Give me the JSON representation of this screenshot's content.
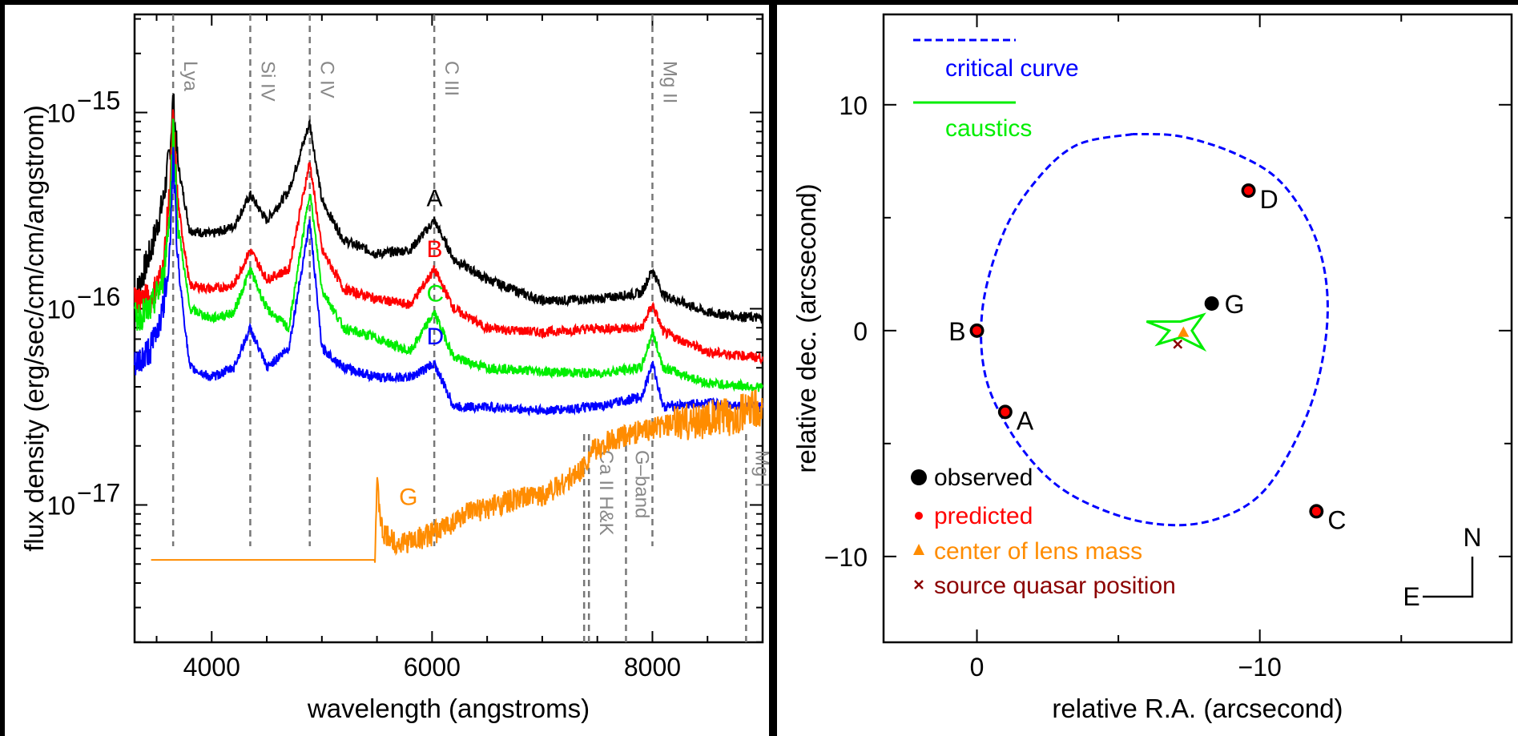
{
  "chart_data": [
    {
      "type": "line",
      "xlabel": "wavelength (angstroms)",
      "ylabel": "flux density (erg/sec/cm/cm/angstrom)",
      "xlim": [
        3300,
        9000
      ],
      "ylim_log10": [
        -17.7,
        -14.5
      ],
      "yscale": "log",
      "x_ticks": [
        4000,
        6000,
        8000
      ],
      "y_ticks": [
        {
          "exp": -15,
          "base": "10",
          "sup": "−15"
        },
        {
          "exp": -16,
          "base": "10",
          "sup": "−16"
        },
        {
          "exp": -17,
          "base": "10",
          "sup": "−17"
        }
      ],
      "emission_lines": [
        {
          "label": "Lya",
          "x": 3650
        },
        {
          "label": "Si IV",
          "x": 4350
        },
        {
          "label": "C IV",
          "x": 4890
        },
        {
          "label": "C III",
          "x": 6020
        },
        {
          "label": "Mg II",
          "x": 8000
        }
      ],
      "absorption_lines": [
        {
          "label": "Ca II H&K",
          "x": 7380
        },
        {
          "label": "G–band",
          "x": 7760
        },
        {
          "label": "Mg I",
          "x": 8850
        }
      ],
      "series": [
        {
          "name": "A",
          "color": "#000000",
          "points": [
            [
              3300,
              -15.95
            ],
            [
              3450,
              -15.7
            ],
            [
              3560,
              -15.45
            ],
            [
              3620,
              -15.2
            ],
            [
              3650,
              -14.93
            ],
            [
              3690,
              -15.25
            ],
            [
              3800,
              -15.6
            ],
            [
              4000,
              -15.62
            ],
            [
              4200,
              -15.58
            ],
            [
              4350,
              -15.42
            ],
            [
              4500,
              -15.55
            ],
            [
              4700,
              -15.4
            ],
            [
              4890,
              -15.05
            ],
            [
              5000,
              -15.45
            ],
            [
              5200,
              -15.65
            ],
            [
              5500,
              -15.72
            ],
            [
              5800,
              -15.7
            ],
            [
              6020,
              -15.55
            ],
            [
              6200,
              -15.75
            ],
            [
              6500,
              -15.85
            ],
            [
              7000,
              -15.96
            ],
            [
              7500,
              -15.95
            ],
            [
              7900,
              -15.92
            ],
            [
              8000,
              -15.8
            ],
            [
              8100,
              -15.93
            ],
            [
              8500,
              -16.02
            ],
            [
              9000,
              -16.05
            ]
          ]
        },
        {
          "name": "B",
          "color": "#ff0000",
          "points": [
            [
              3300,
              -15.95
            ],
            [
              3450,
              -15.95
            ],
            [
              3560,
              -15.8
            ],
            [
              3620,
              -15.4
            ],
            [
              3650,
              -15.02
            ],
            [
              3690,
              -15.45
            ],
            [
              3800,
              -15.88
            ],
            [
              4000,
              -15.9
            ],
            [
              4200,
              -15.88
            ],
            [
              4350,
              -15.7
            ],
            [
              4500,
              -15.85
            ],
            [
              4700,
              -15.8
            ],
            [
              4890,
              -15.25
            ],
            [
              5000,
              -15.7
            ],
            [
              5200,
              -15.9
            ],
            [
              5500,
              -15.95
            ],
            [
              5800,
              -15.98
            ],
            [
              6020,
              -15.8
            ],
            [
              6200,
              -16.0
            ],
            [
              6500,
              -16.1
            ],
            [
              7000,
              -16.12
            ],
            [
              7500,
              -16.1
            ],
            [
              7900,
              -16.1
            ],
            [
              8000,
              -15.98
            ],
            [
              8100,
              -16.12
            ],
            [
              8500,
              -16.22
            ],
            [
              9000,
              -16.25
            ]
          ]
        },
        {
          "name": "C",
          "color": "#00ee00",
          "points": [
            [
              3300,
              -16.05
            ],
            [
              3450,
              -16.0
            ],
            [
              3560,
              -15.85
            ],
            [
              3620,
              -15.5
            ],
            [
              3650,
              -15.05
            ],
            [
              3690,
              -15.55
            ],
            [
              3800,
              -16.0
            ],
            [
              4000,
              -16.05
            ],
            [
              4200,
              -16.02
            ],
            [
              4350,
              -15.8
            ],
            [
              4500,
              -16.0
            ],
            [
              4700,
              -16.1
            ],
            [
              4890,
              -15.4
            ],
            [
              5000,
              -15.9
            ],
            [
              5200,
              -16.1
            ],
            [
              5500,
              -16.15
            ],
            [
              5800,
              -16.22
            ],
            [
              6020,
              -16.02
            ],
            [
              6200,
              -16.25
            ],
            [
              6500,
              -16.3
            ],
            [
              7000,
              -16.32
            ],
            [
              7500,
              -16.33
            ],
            [
              7900,
              -16.3
            ],
            [
              8000,
              -16.12
            ],
            [
              8100,
              -16.3
            ],
            [
              8500,
              -16.38
            ],
            [
              9000,
              -16.4
            ]
          ]
        },
        {
          "name": "D",
          "color": "#0000ff",
          "points": [
            [
              3300,
              -16.3
            ],
            [
              3450,
              -16.2
            ],
            [
              3560,
              -16.0
            ],
            [
              3620,
              -15.7
            ],
            [
              3650,
              -15.2
            ],
            [
              3690,
              -15.75
            ],
            [
              3800,
              -16.3
            ],
            [
              4000,
              -16.35
            ],
            [
              4200,
              -16.3
            ],
            [
              4350,
              -16.1
            ],
            [
              4500,
              -16.3
            ],
            [
              4700,
              -16.2
            ],
            [
              4890,
              -15.55
            ],
            [
              5000,
              -16.2
            ],
            [
              5200,
              -16.3
            ],
            [
              5500,
              -16.35
            ],
            [
              5800,
              -16.35
            ],
            [
              6020,
              -16.28
            ],
            [
              6200,
              -16.5
            ],
            [
              6500,
              -16.5
            ],
            [
              7000,
              -16.52
            ],
            [
              7500,
              -16.5
            ],
            [
              7900,
              -16.45
            ],
            [
              8000,
              -16.28
            ],
            [
              8100,
              -16.5
            ],
            [
              8500,
              -16.48
            ],
            [
              9000,
              -16.5
            ]
          ]
        },
        {
          "name": "G",
          "color": "#ff8c00",
          "points": [
            [
              3450,
              -17.28
            ],
            [
              5480,
              -17.28
            ],
            [
              5500,
              -16.9
            ],
            [
              5550,
              -17.15
            ],
            [
              5700,
              -17.2
            ],
            [
              6000,
              -17.15
            ],
            [
              6300,
              -17.05
            ],
            [
              6700,
              -16.98
            ],
            [
              7000,
              -16.95
            ],
            [
              7300,
              -16.85
            ],
            [
              7380,
              -16.8
            ],
            [
              7450,
              -16.72
            ],
            [
              7500,
              -16.72
            ],
            [
              7600,
              -16.68
            ],
            [
              7900,
              -16.62
            ],
            [
              8300,
              -16.58
            ],
            [
              8700,
              -16.55
            ],
            [
              9000,
              -16.5
            ]
          ]
        }
      ]
    },
    {
      "type": "scatter",
      "xlabel": "relative R.A. (arcsecond)",
      "ylabel": "relative dec. (arcsecond)",
      "xlim": [
        3.3,
        -18.9
      ],
      "ylim": [
        -13.8,
        14.0
      ],
      "x_ticks": [
        {
          "value": 0,
          "label": "0"
        },
        {
          "value": -10,
          "label": "−10"
        }
      ],
      "y_ticks": [
        {
          "value": 10,
          "label": "10"
        },
        {
          "value": 0,
          "label": "0"
        },
        {
          "value": -10,
          "label": "−10"
        }
      ],
      "legend": {
        "lines": [
          {
            "label": "critical curve",
            "color": "#0000ff",
            "style": "dashed"
          },
          {
            "label": "caustics",
            "color": "#00ee00",
            "style": "solid"
          }
        ],
        "markers": [
          {
            "label": "observed",
            "color": "#000000",
            "marker": "circle"
          },
          {
            "label": "predicted",
            "color": "#ff0000",
            "marker": "dot"
          },
          {
            "label": "center of lens mass",
            "color": "#ff8c00",
            "marker": "triangle"
          },
          {
            "label": "source quasar position",
            "color": "#8b0000",
            "marker": "x"
          }
        ]
      },
      "images": [
        {
          "name": "A",
          "x": -1.0,
          "y": -3.6
        },
        {
          "name": "B",
          "x": 0.0,
          "y": 0.0
        },
        {
          "name": "C",
          "x": -12.0,
          "y": -8.0
        },
        {
          "name": "D",
          "x": -9.6,
          "y": 6.2
        },
        {
          "name": "G",
          "x": -8.3,
          "y": 1.2
        }
      ],
      "lens_center": {
        "x": -7.3,
        "y": -0.1
      },
      "source": {
        "x": -7.1,
        "y": -0.6
      },
      "critical_curve": [
        [
          -5.5,
          8.7
        ],
        [
          -3.5,
          8.2
        ],
        [
          -2.0,
          6.5
        ],
        [
          -0.9,
          4.2
        ],
        [
          -0.2,
          1.0
        ],
        [
          -0.3,
          -2.0
        ],
        [
          -1.2,
          -4.5
        ],
        [
          -2.5,
          -6.5
        ],
        [
          -4.0,
          -7.7
        ],
        [
          -6.0,
          -8.5
        ],
        [
          -8.0,
          -8.5
        ],
        [
          -9.8,
          -7.5
        ],
        [
          -11.0,
          -5.5
        ],
        [
          -12.0,
          -2.5
        ],
        [
          -12.4,
          1.0
        ],
        [
          -12.0,
          4.0
        ],
        [
          -10.8,
          6.5
        ],
        [
          -9.2,
          7.8
        ],
        [
          -7.2,
          8.6
        ],
        [
          -5.5,
          8.7
        ]
      ],
      "caustic": [
        [
          -6.0,
          0.4
        ],
        [
          -6.8,
          0.0
        ],
        [
          -6.4,
          -0.6
        ],
        [
          -7.2,
          -0.3
        ],
        [
          -8.0,
          -0.8
        ],
        [
          -7.6,
          0.0
        ],
        [
          -8.0,
          0.7
        ],
        [
          -7.2,
          0.4
        ],
        [
          -6.0,
          0.4
        ]
      ],
      "compass": {
        "north": "N",
        "east": "E"
      }
    }
  ]
}
